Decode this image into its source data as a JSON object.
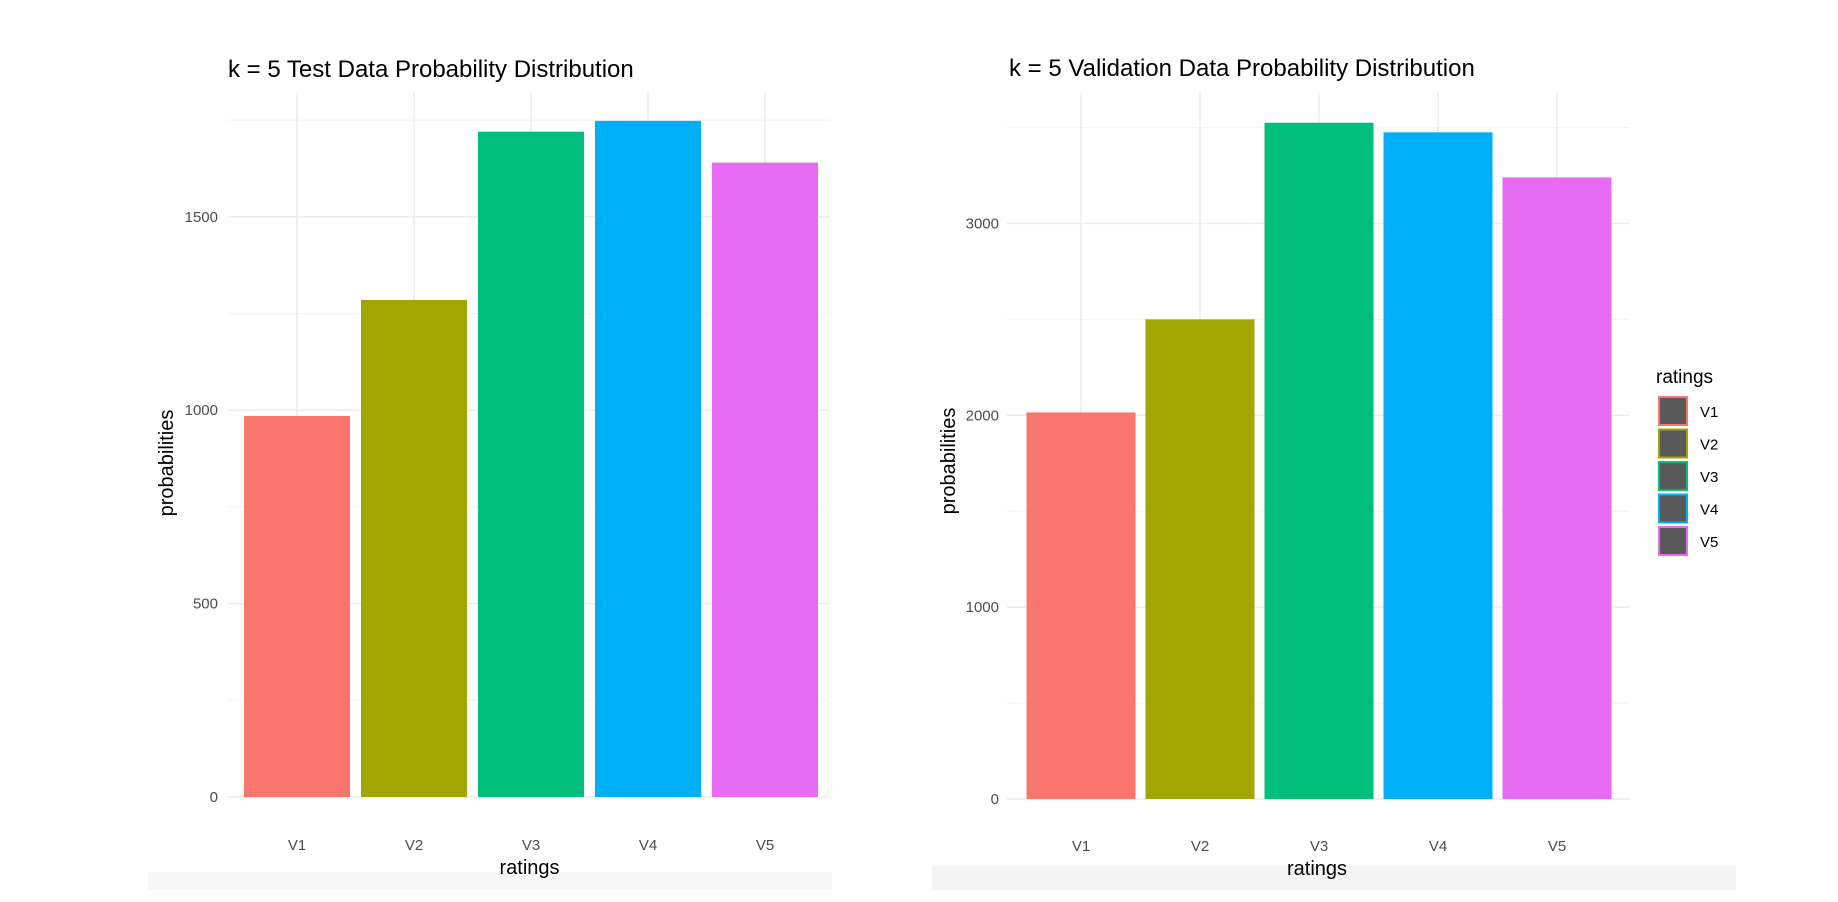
{
  "chart_data": [
    {
      "type": "bar",
      "title": "k =  5 Test Data Probability Distribution",
      "xlabel": "ratings",
      "ylabel": "probabilities",
      "categories": [
        "V1",
        "V2",
        "V3",
        "V4",
        "V5"
      ],
      "values": [
        985,
        1285,
        1720,
        1748,
        1640
      ],
      "ylim": [
        0,
        1820
      ],
      "yticks": [
        0,
        500,
        1000,
        1500
      ],
      "colors": [
        "#F8766D",
        "#A3A500",
        "#00BF7D",
        "#00B0F6",
        "#E76BF3"
      ],
      "grid": true
    },
    {
      "type": "bar",
      "title": "k =  5 Validation Data Probability Distribution",
      "xlabel": "ratings",
      "ylabel": "probabilities",
      "categories": [
        "V1",
        "V2",
        "V3",
        "V4",
        "V5"
      ],
      "values": [
        2015,
        2500,
        3525,
        3475,
        3240
      ],
      "ylim": [
        0,
        3680
      ],
      "yticks": [
        0,
        1000,
        2000,
        3000
      ],
      "colors": [
        "#F8766D",
        "#A3A500",
        "#00BF7D",
        "#00B0F6",
        "#E76BF3"
      ],
      "grid": true
    }
  ],
  "legend": {
    "title": "ratings",
    "items": [
      "V1",
      "V2",
      "V3",
      "V4",
      "V5"
    ],
    "fill": "#595959",
    "placement": "right"
  }
}
